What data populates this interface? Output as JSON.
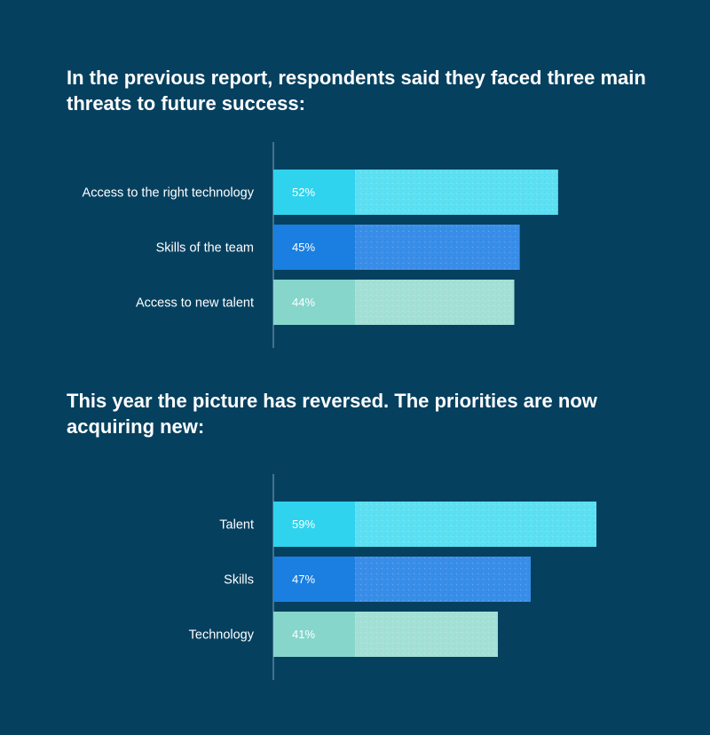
{
  "colors": {
    "background": "#05405f",
    "series": [
      "#2fd3ee",
      "#1a7fe0",
      "#86d6cc"
    ],
    "series_light": [
      "#5ee0f2",
      "#3a8ee8",
      "#a4e0d6"
    ]
  },
  "chart_data": [
    {
      "type": "bar",
      "orientation": "horizontal",
      "title": "In the previous report, respondents said they faced three main threats to future success:",
      "categories": [
        "Access to the right technology",
        "Skills of the team",
        "Access to new talent"
      ],
      "values": [
        52,
        45,
        44
      ],
      "value_labels": [
        "52%",
        "45%",
        "44%"
      ],
      "xlim": [
        0,
        65
      ],
      "grid": false,
      "legend": "none"
    },
    {
      "type": "bar",
      "orientation": "horizontal",
      "title": "This year the picture has reversed. The priorities are now acquiring new:",
      "categories": [
        "Talent",
        "Skills",
        "Technology"
      ],
      "values": [
        59,
        47,
        41
      ],
      "value_labels": [
        "59%",
        "47%",
        "41%"
      ],
      "xlim": [
        0,
        65
      ],
      "grid": false,
      "legend": "none"
    }
  ]
}
